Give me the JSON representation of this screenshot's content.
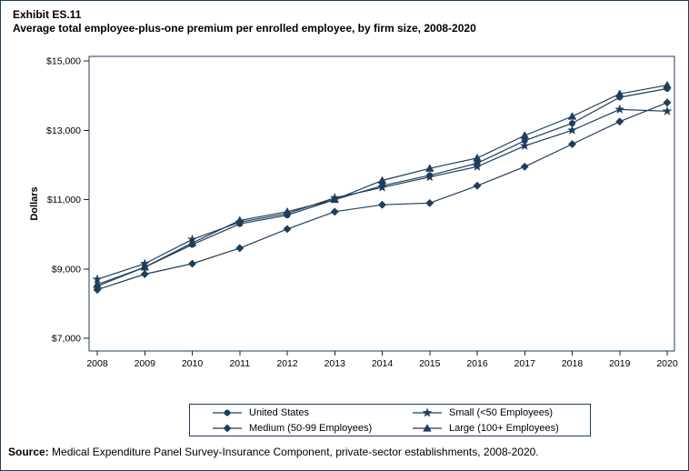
{
  "page": {
    "exhibit_label": "Exhibit ES.11",
    "title": "Average total employee-plus-one premium per enrolled employee, by firm size, 2008-2020",
    "source_label": "Source:",
    "source_text": " Medical Expenditure Panel Survey-Insurance Component, private-sector establishments, 2008-2020."
  },
  "chart_data": {
    "type": "line",
    "title": "Average total employee-plus-one premium per enrolled employee, by firm size, 2008-2020",
    "xlabel": "",
    "ylabel": "Dollars",
    "x": [
      2008,
      2009,
      2010,
      2011,
      2012,
      2013,
      2014,
      2015,
      2016,
      2017,
      2018,
      2019,
      2020
    ],
    "ylim": [
      7000,
      15000
    ],
    "yticks": [
      7000,
      9000,
      11000,
      13000,
      15000
    ],
    "ytick_labels": [
      "$7,000",
      "$9,000",
      "$11,000",
      "$13,000",
      "$15,000"
    ],
    "grid": "off",
    "legend_position": "bottom",
    "line_color": "#1f3d5c",
    "series": [
      {
        "name": "United States",
        "marker": "circle",
        "values": [
          8500,
          9050,
          9700,
          10300,
          10550,
          11000,
          11400,
          11700,
          12050,
          12700,
          13200,
          13950,
          14200
        ]
      },
      {
        "name": "Small (<50 Employees)",
        "marker": "star",
        "values": [
          8700,
          9150,
          9850,
          10350,
          10600,
          11050,
          11350,
          11650,
          11950,
          12550,
          13000,
          13600,
          13550
        ]
      },
      {
        "name": "Medium (50-99 Employees)",
        "marker": "diamond",
        "values": [
          8400,
          8850,
          9150,
          9600,
          10150,
          10650,
          10850,
          10900,
          11400,
          11950,
          12600,
          13250,
          13800
        ]
      },
      {
        "name": "Large (100+ Employees)",
        "marker": "triangle",
        "values": [
          8550,
          9050,
          9750,
          10400,
          10650,
          11000,
          11550,
          11900,
          12200,
          12850,
          13400,
          14050,
          14300
        ]
      }
    ]
  }
}
